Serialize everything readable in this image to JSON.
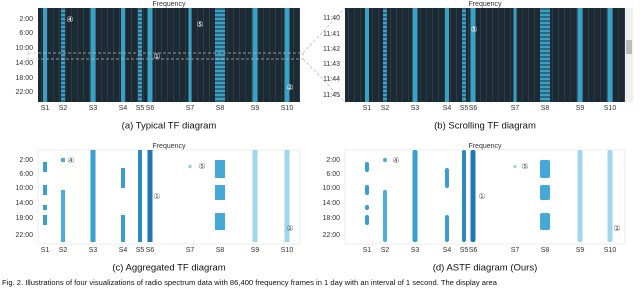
{
  "figure": {
    "panels": [
      {
        "axis_title": "Frequency",
        "caption": "(a) Typical TF diagram",
        "time_labels": [
          "2:00",
          "6:00",
          "10:00",
          "14:00",
          "18:00",
          "22:00"
        ],
        "station_labels": [
          "S1",
          "S2",
          "S3",
          "S4",
          "S5",
          "S6",
          "S7",
          "S8",
          "S9",
          "S10"
        ],
        "markers": [
          "④",
          "⑤",
          "①",
          "②"
        ]
      },
      {
        "axis_title": "Frequency",
        "caption": "(b) Scrolling TF diagram",
        "time_labels": [
          "11:40",
          "11:41",
          "11:42",
          "11:43",
          "11:44",
          "11:45"
        ],
        "station_labels": [
          "S1",
          "S2",
          "S3",
          "S4",
          "S5",
          "S6",
          "S7",
          "S8",
          "S9",
          "S10"
        ],
        "markers": [
          "⑤"
        ]
      },
      {
        "axis_title": "Frequency",
        "caption": "(c) Aggregated TF diagram",
        "time_labels": [
          "2:00",
          "6:00",
          "10:00",
          "14:00",
          "18:00",
          "22:00"
        ],
        "station_labels": [
          "S1",
          "S2",
          "S3",
          "S4",
          "S5",
          "S6",
          "S7",
          "S8",
          "S9",
          "S10"
        ],
        "markers": [
          "④",
          "⑤",
          "①",
          "②"
        ]
      },
      {
        "axis_title": "Frequency",
        "caption": "(d) ASTF diagram (Ours)",
        "time_labels": [
          "2:00",
          "6:00",
          "10:00",
          "14:00",
          "18:00",
          "22:00"
        ],
        "station_labels": [
          "S1",
          "S2",
          "S3",
          "S4",
          "S5",
          "S6",
          "S7",
          "S8",
          "S9",
          "S10"
        ],
        "markers": [
          "④",
          "⑤",
          "①",
          "②"
        ]
      }
    ],
    "caption": "Fig. 2.   Illustrations of four visualizations of radio spectrum data with 86,400 frequency frames in 1 day with an interval of 1 second.  The display area"
  }
}
